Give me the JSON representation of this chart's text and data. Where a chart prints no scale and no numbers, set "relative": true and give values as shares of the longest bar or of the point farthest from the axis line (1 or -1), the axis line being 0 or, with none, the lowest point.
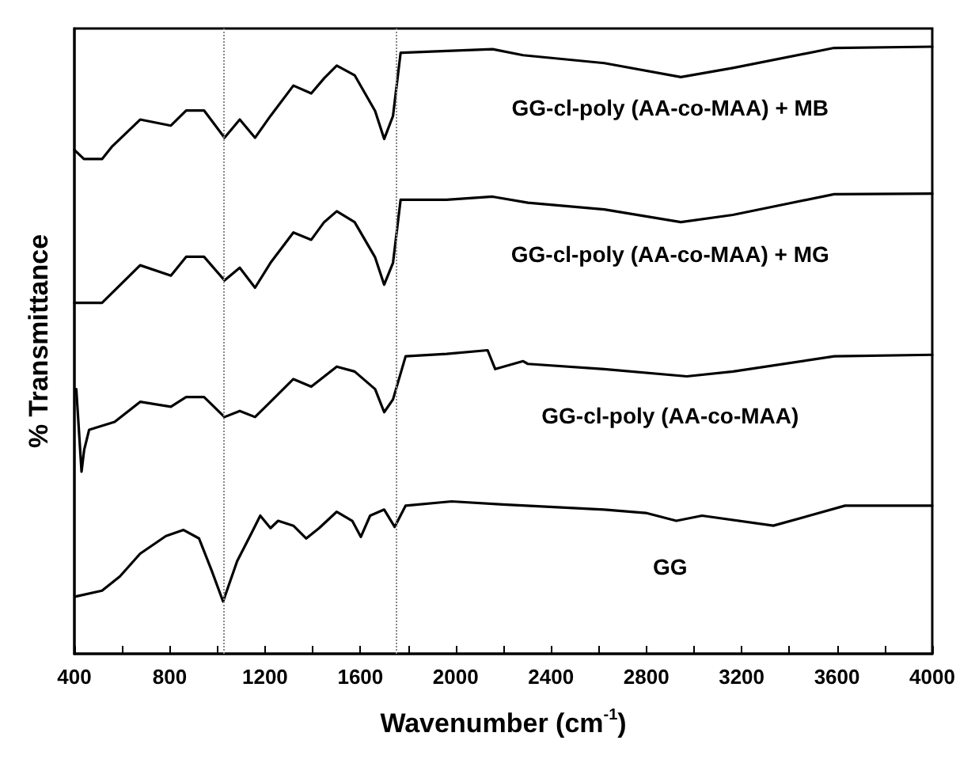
{
  "chart_data": {
    "type": "line",
    "relative": true,
    "xlabel": "Wavenumber (cm$^{-1}$)",
    "ylabel": "% Transmittance",
    "xlim": [
      400,
      4000
    ],
    "xticks": [
      400,
      800,
      1200,
      1600,
      2000,
      2400,
      2800,
      3200,
      3600,
      4000
    ],
    "grid": false,
    "legend": false,
    "marker": "none",
    "line_style": "solid",
    "ref_lines": [
      {
        "axis": "x",
        "value": 1024,
        "label": null,
        "color": "#888888",
        "line_style": "dotted"
      },
      {
        "axis": "x",
        "value": 1749,
        "label": null,
        "color": "#888888",
        "line_style": "dotted"
      }
    ],
    "series": [
      {
        "name": "GG-cl-poly (AA-co-MAA) + MB",
        "color": "#000000",
        "x": [
          400,
          440,
          516,
          559,
          676,
          805,
          869,
          944,
          1030,
          1094,
          1158,
          1223,
          1319,
          1394,
          1448,
          1501,
          1576,
          1662,
          1700,
          1737,
          1769,
          1962,
          2155,
          2283,
          2624,
          2945,
          3163,
          3588,
          4000
        ],
        "values": [
          0.83,
          0.815,
          0.815,
          0.836,
          0.88,
          0.87,
          0.895,
          0.895,
          0.85,
          0.88,
          0.85,
          0.886,
          0.936,
          0.923,
          0.948,
          0.969,
          0.953,
          0.894,
          0.848,
          0.886,
          0.99,
          0.993,
          0.996,
          0.986,
          0.973,
          0.95,
          0.965,
          0.998,
          1.0
        ]
      },
      {
        "name": "GG-cl-poly (AA-co-MAA) + MG",
        "color": "#000000",
        "x": [
          400,
          516,
          676,
          805,
          869,
          944,
          1030,
          1094,
          1158,
          1223,
          1319,
          1394,
          1448,
          1501,
          1576,
          1662,
          1700,
          1737,
          1769,
          1962,
          2155,
          2303,
          2624,
          2945,
          3163,
          3588,
          4000
        ],
        "values": [
          0.578,
          0.578,
          0.64,
          0.623,
          0.654,
          0.654,
          0.615,
          0.636,
          0.603,
          0.644,
          0.694,
          0.682,
          0.711,
          0.729,
          0.711,
          0.653,
          0.608,
          0.644,
          0.748,
          0.748,
          0.753,
          0.743,
          0.732,
          0.711,
          0.723,
          0.757,
          0.758
        ]
      },
      {
        "name": "GG-cl-poly (AA-co-MAA)",
        "color": "#000000",
        "x": [
          408,
          430,
          441,
          462,
          569,
          676,
          805,
          869,
          944,
          1030,
          1094,
          1158,
          1223,
          1319,
          1394,
          1501,
          1576,
          1662,
          1700,
          1737,
          1790,
          1962,
          2134,
          2166,
          2283,
          2303,
          2624,
          2970,
          3164,
          3589,
          4000
        ],
        "values": [
          0.436,
          0.3,
          0.336,
          0.369,
          0.382,
          0.415,
          0.407,
          0.423,
          0.423,
          0.39,
          0.4,
          0.39,
          0.415,
          0.4525,
          0.44,
          0.473,
          0.465,
          0.436,
          0.398,
          0.419,
          0.49,
          0.494,
          0.5,
          0.469,
          0.482,
          0.4775,
          0.469,
          0.457,
          0.465,
          0.49,
          0.4925
        ]
      },
      {
        "name": "GG",
        "color": "#000000",
        "x": [
          402,
          516,
          591,
          676,
          784,
          858,
          923,
          977,
          1024,
          1083,
          1148,
          1180,
          1223,
          1255,
          1319,
          1373,
          1427,
          1501,
          1566,
          1602,
          1641,
          1700,
          1744,
          1790,
          1983,
          2198,
          2624,
          2798,
          2926,
          3034,
          3333,
          3484,
          3634,
          4000
        ],
        "values": [
          0.094,
          0.104,
          0.1275,
          0.165,
          0.194,
          0.204,
          0.19,
          0.136,
          0.086,
          0.1525,
          0.2025,
          0.2275,
          0.207,
          0.219,
          0.211,
          0.19,
          0.207,
          0.234,
          0.219,
          0.1925,
          0.2275,
          0.2375,
          0.209,
          0.244,
          0.251,
          0.246,
          0.2375,
          0.232,
          0.219,
          0.2275,
          0.211,
          0.2275,
          0.244,
          0.244
        ]
      }
    ]
  }
}
